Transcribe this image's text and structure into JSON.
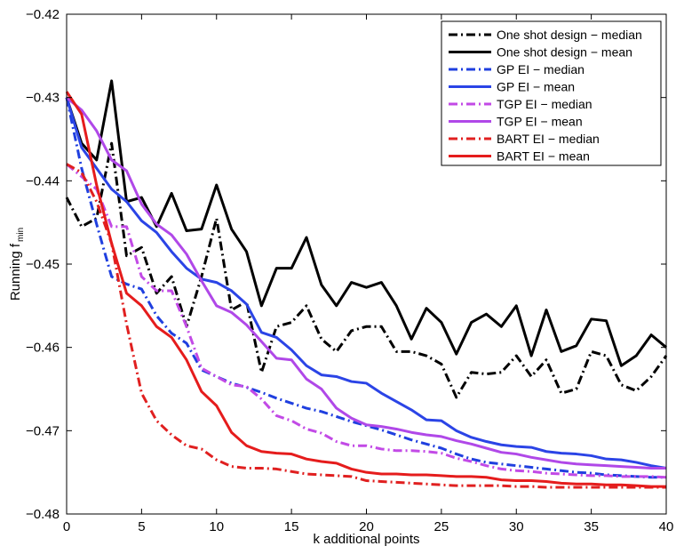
{
  "chart_data": {
    "type": "line",
    "title": "",
    "xlabel": "k additional points",
    "ylabel": "Running f",
    "ylabel_subscript": "min",
    "xlim": [
      0,
      40
    ],
    "ylim": [
      -0.48,
      -0.42
    ],
    "xticks": [
      0,
      5,
      10,
      15,
      20,
      25,
      30,
      35,
      40
    ],
    "xtick_labels": [
      "0",
      "5",
      "10",
      "15",
      "20",
      "25",
      "30",
      "35",
      "40"
    ],
    "yticks": [
      -0.42,
      -0.43,
      -0.44,
      -0.45,
      -0.46,
      -0.47,
      -0.48
    ],
    "ytick_labels": [
      "−0.42",
      "−0.43",
      "−0.44",
      "−0.45",
      "−0.46",
      "−0.47",
      "−0.48"
    ],
    "grid": false,
    "legend_position": "top-right",
    "x": [
      0,
      1,
      2,
      3,
      4,
      5,
      6,
      7,
      8,
      9,
      10,
      11,
      12,
      13,
      14,
      15,
      16,
      17,
      18,
      19,
      20,
      21,
      22,
      23,
      24,
      25,
      26,
      27,
      28,
      29,
      30,
      31,
      32,
      33,
      34,
      35,
      36,
      37,
      38,
      39,
      40
    ],
    "series": [
      {
        "name": "One shot design − median",
        "color": "#000000",
        "dash": "dashdot",
        "values": [
          -0.442,
          -0.4455,
          -0.4445,
          -0.4355,
          -0.449,
          -0.448,
          -0.4535,
          -0.4515,
          -0.4575,
          -0.4515,
          -0.4445,
          -0.4555,
          -0.4545,
          -0.463,
          -0.4575,
          -0.457,
          -0.455,
          -0.459,
          -0.4605,
          -0.458,
          -0.4575,
          -0.4575,
          -0.4605,
          -0.4605,
          -0.461,
          -0.462,
          -0.466,
          -0.463,
          -0.4632,
          -0.463,
          -0.461,
          -0.4635,
          -0.4615,
          -0.4655,
          -0.465,
          -0.4605,
          -0.461,
          -0.4645,
          -0.4652,
          -0.4635,
          -0.461
        ]
      },
      {
        "name": "One shot design − mean",
        "color": "#000000",
        "dash": "solid",
        "values": [
          -0.43,
          -0.4355,
          -0.4375,
          -0.428,
          -0.4425,
          -0.442,
          -0.4455,
          -0.4415,
          -0.446,
          -0.4458,
          -0.4405,
          -0.4458,
          -0.4485,
          -0.455,
          -0.4505,
          -0.4505,
          -0.4468,
          -0.4525,
          -0.455,
          -0.4522,
          -0.4528,
          -0.4522,
          -0.455,
          -0.459,
          -0.4553,
          -0.457,
          -0.4608,
          -0.457,
          -0.456,
          -0.4575,
          -0.455,
          -0.461,
          -0.4555,
          -0.4605,
          -0.4598,
          -0.4566,
          -0.4568,
          -0.4622,
          -0.461,
          -0.4585,
          -0.46
        ]
      },
      {
        "name": "GP EI − median",
        "color": "#1f3fdf",
        "dash": "dashdot",
        "values": [
          -0.43,
          -0.4385,
          -0.4452,
          -0.4515,
          -0.4524,
          -0.453,
          -0.4562,
          -0.4583,
          -0.4595,
          -0.4627,
          -0.4635,
          -0.4643,
          -0.4648,
          -0.4654,
          -0.4661,
          -0.4667,
          -0.4673,
          -0.4677,
          -0.4683,
          -0.4689,
          -0.4694,
          -0.4699,
          -0.4705,
          -0.4711,
          -0.4716,
          -0.4721,
          -0.4728,
          -0.4734,
          -0.4738,
          -0.474,
          -0.4742,
          -0.4744,
          -0.4746,
          -0.4748,
          -0.475,
          -0.4751,
          -0.4753,
          -0.4754,
          -0.4755,
          -0.4756,
          -0.4756
        ]
      },
      {
        "name": "GP EI − mean",
        "color": "#2b44e6",
        "dash": "solid",
        "values": [
          -0.43,
          -0.436,
          -0.4385,
          -0.441,
          -0.4425,
          -0.4448,
          -0.4462,
          -0.4485,
          -0.4505,
          -0.4518,
          -0.4522,
          -0.4532,
          -0.4548,
          -0.4582,
          -0.4588,
          -0.4603,
          -0.4622,
          -0.4633,
          -0.4635,
          -0.4641,
          -0.4643,
          -0.4655,
          -0.4665,
          -0.4675,
          -0.4687,
          -0.4688,
          -0.47,
          -0.4708,
          -0.4713,
          -0.4717,
          -0.4719,
          -0.472,
          -0.4725,
          -0.4727,
          -0.4728,
          -0.473,
          -0.4734,
          -0.4735,
          -0.4738,
          -0.4742,
          -0.4745
        ]
      },
      {
        "name": "TGP EI − median",
        "color": "#c24ae6",
        "dash": "dashdot",
        "values": [
          -0.438,
          -0.4395,
          -0.441,
          -0.4455,
          -0.4455,
          -0.4515,
          -0.4532,
          -0.4532,
          -0.4575,
          -0.4625,
          -0.4635,
          -0.4645,
          -0.4647,
          -0.4662,
          -0.4682,
          -0.4688,
          -0.4698,
          -0.4703,
          -0.4713,
          -0.4718,
          -0.4718,
          -0.4722,
          -0.4724,
          -0.4724,
          -0.4725,
          -0.4727,
          -0.4733,
          -0.4737,
          -0.4742,
          -0.4746,
          -0.4748,
          -0.4749,
          -0.4751,
          -0.4752,
          -0.4753,
          -0.4754,
          -0.4754,
          -0.4755,
          -0.4755,
          -0.4755,
          -0.4756
        ]
      },
      {
        "name": "TGP EI − mean",
        "color": "#b048e8",
        "dash": "solid",
        "values": [
          -0.43,
          -0.4315,
          -0.434,
          -0.4375,
          -0.4388,
          -0.4428,
          -0.4452,
          -0.4465,
          -0.4488,
          -0.452,
          -0.455,
          -0.4558,
          -0.4573,
          -0.4593,
          -0.4613,
          -0.4615,
          -0.4638,
          -0.465,
          -0.4673,
          -0.4685,
          -0.4693,
          -0.4695,
          -0.4698,
          -0.4702,
          -0.4705,
          -0.4707,
          -0.4712,
          -0.4716,
          -0.4721,
          -0.4726,
          -0.4728,
          -0.4732,
          -0.4735,
          -0.4738,
          -0.474,
          -0.4741,
          -0.4742,
          -0.4743,
          -0.4744,
          -0.4745,
          -0.4745
        ]
      },
      {
        "name": "BART EI − median",
        "color": "#e02020",
        "dash": "dashdot",
        "values": [
          -0.438,
          -0.439,
          -0.4425,
          -0.4475,
          -0.4572,
          -0.4655,
          -0.4688,
          -0.4705,
          -0.4718,
          -0.4722,
          -0.4735,
          -0.4743,
          -0.4745,
          -0.4745,
          -0.4746,
          -0.4749,
          -0.4752,
          -0.4753,
          -0.4754,
          -0.4755,
          -0.476,
          -0.4761,
          -0.4762,
          -0.4763,
          -0.4764,
          -0.4765,
          -0.4766,
          -0.4766,
          -0.4766,
          -0.4766,
          -0.4767,
          -0.4767,
          -0.4768,
          -0.4768,
          -0.4768,
          -0.4768,
          -0.4768,
          -0.4768,
          -0.4768,
          -0.4768,
          -0.4768
        ]
      },
      {
        "name": "BART EI − mean",
        "color": "#e51c1c",
        "dash": "solid",
        "values": [
          -0.4293,
          -0.432,
          -0.4405,
          -0.4475,
          -0.4535,
          -0.455,
          -0.4575,
          -0.4588,
          -0.4615,
          -0.4653,
          -0.467,
          -0.4702,
          -0.4718,
          -0.4725,
          -0.4727,
          -0.4728,
          -0.4734,
          -0.4737,
          -0.4739,
          -0.4746,
          -0.475,
          -0.4752,
          -0.4752,
          -0.4753,
          -0.4753,
          -0.4754,
          -0.4755,
          -0.4755,
          -0.4756,
          -0.4759,
          -0.476,
          -0.476,
          -0.4761,
          -0.4763,
          -0.4764,
          -0.4764,
          -0.4765,
          -0.4765,
          -0.4766,
          -0.4767,
          -0.4767
        ]
      }
    ]
  }
}
